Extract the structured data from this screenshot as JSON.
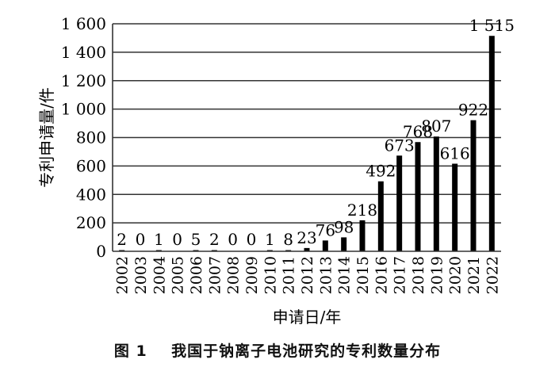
{
  "chart_data": {
    "type": "bar",
    "title": "",
    "xlabel": "申请日/年",
    "ylabel": "专利申请量/件",
    "ylim": [
      0,
      1600
    ],
    "yticks": [
      0,
      200,
      400,
      600,
      800,
      1000,
      1200,
      1400,
      1600
    ],
    "ytick_labels": [
      "0",
      "200",
      "400",
      "600",
      "800",
      "1 000",
      "1 200",
      "1 400",
      "1 600"
    ],
    "grid": true,
    "bar_color": "#000000",
    "categories": [
      "2002",
      "2003",
      "2004",
      "2005",
      "2006",
      "2007",
      "2008",
      "2009",
      "2010",
      "2011",
      "2012",
      "2013",
      "2014",
      "2015",
      "2016",
      "2017",
      "2018",
      "2019",
      "2020",
      "2021",
      "2022"
    ],
    "values": [
      2,
      0,
      1,
      0,
      5,
      2,
      0,
      0,
      1,
      8,
      23,
      76,
      98,
      218,
      492,
      673,
      768,
      807,
      616,
      922,
      1515
    ],
    "data_labels": [
      "2",
      "0",
      "1",
      "0",
      "5",
      "2",
      "0",
      "0",
      "1",
      "8",
      "23",
      "76",
      "98",
      "218",
      "492",
      "673",
      "768",
      "807",
      "616",
      "922",
      "1 515"
    ]
  },
  "caption": "图 1    我国于钠离子电池研究的专利数量分布"
}
